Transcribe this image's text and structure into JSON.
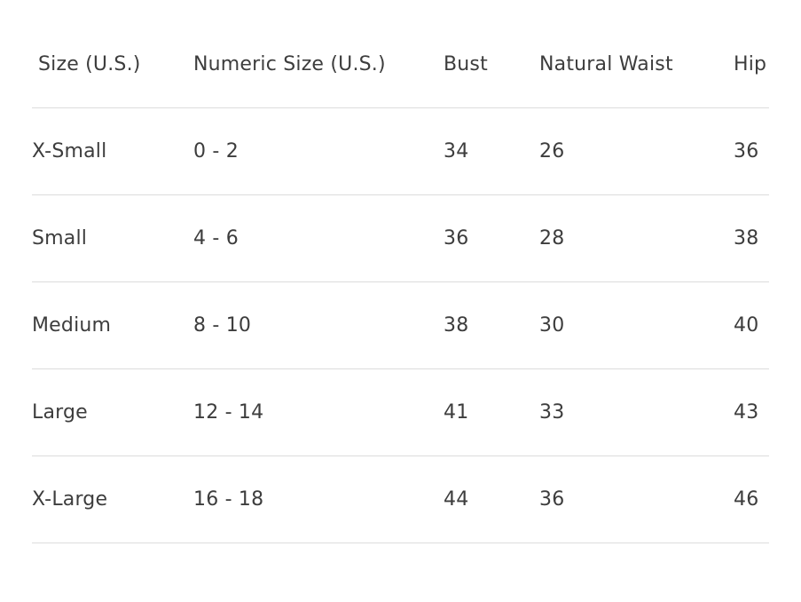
{
  "table": {
    "headers": [
      "Size (U.S.)",
      "Numeric Size (U.S.)",
      "Bust",
      "Natural Waist",
      "Hip"
    ],
    "rows": [
      [
        "X-Small",
        "0 - 2",
        "34",
        "26",
        "36"
      ],
      [
        "Small",
        "4 - 6",
        "36",
        "28",
        "38"
      ],
      [
        "Medium",
        "8 - 10",
        "38",
        "30",
        "40"
      ],
      [
        "Large",
        "12 - 14",
        "41",
        "33",
        "43"
      ],
      [
        "X-Large",
        "16 - 18",
        "44",
        "36",
        "46"
      ]
    ]
  }
}
